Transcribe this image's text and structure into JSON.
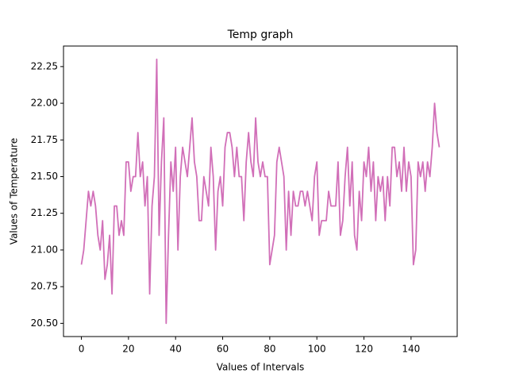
{
  "chart_data": {
    "type": "line",
    "title": "Temp graph",
    "xlabel": "Values of Intervals",
    "ylabel": "Values of Temperature",
    "x": [
      0,
      1,
      2,
      3,
      4,
      5,
      6,
      7,
      8,
      9,
      10,
      11,
      12,
      13,
      14,
      15,
      16,
      17,
      18,
      19,
      20,
      21,
      22,
      23,
      24,
      25,
      26,
      27,
      28,
      29,
      30,
      31,
      32,
      33,
      34,
      35,
      36,
      37,
      38,
      39,
      40,
      41,
      42,
      43,
      44,
      45,
      46,
      47,
      48,
      49,
      50,
      51,
      52,
      53,
      54,
      55,
      56,
      57,
      58,
      59,
      60,
      61,
      62,
      63,
      64,
      65,
      66,
      67,
      68,
      69,
      70,
      71,
      72,
      73,
      74,
      75,
      76,
      77,
      78,
      79,
      80,
      81,
      82,
      83,
      84,
      85,
      86,
      87,
      88,
      89,
      90,
      91,
      92,
      93,
      94,
      95,
      96,
      97,
      98,
      99,
      100,
      101,
      102,
      103,
      104,
      105,
      106,
      107,
      108,
      109,
      110,
      111,
      112,
      113,
      114,
      115,
      116,
      117,
      118,
      119,
      120,
      121,
      122,
      123,
      124,
      125,
      126,
      127,
      128,
      129,
      130,
      131,
      132,
      133,
      134,
      135,
      136,
      137,
      138,
      139,
      140,
      141,
      142,
      143,
      144,
      145,
      146,
      147,
      148,
      149,
      150,
      151,
      152
    ],
    "values": [
      20.9,
      21.0,
      21.2,
      21.4,
      21.3,
      21.4,
      21.3,
      21.1,
      21.0,
      21.2,
      20.8,
      20.9,
      21.1,
      20.7,
      21.3,
      21.3,
      21.1,
      21.2,
      21.1,
      21.6,
      21.6,
      21.4,
      21.5,
      21.5,
      21.8,
      21.5,
      21.6,
      21.3,
      21.5,
      20.7,
      21.3,
      21.5,
      22.3,
      21.1,
      21.6,
      21.9,
      20.5,
      21.1,
      21.6,
      21.4,
      21.7,
      21.0,
      21.5,
      21.7,
      21.6,
      21.5,
      21.7,
      21.9,
      21.6,
      21.5,
      21.2,
      21.2,
      21.5,
      21.4,
      21.3,
      21.7,
      21.5,
      21.0,
      21.4,
      21.5,
      21.3,
      21.7,
      21.8,
      21.8,
      21.7,
      21.5,
      21.7,
      21.5,
      21.5,
      21.2,
      21.6,
      21.8,
      21.6,
      21.5,
      21.9,
      21.6,
      21.5,
      21.6,
      21.5,
      21.5,
      20.9,
      21.0,
      21.1,
      21.6,
      21.7,
      21.6,
      21.5,
      21.0,
      21.4,
      21.1,
      21.4,
      21.3,
      21.3,
      21.4,
      21.4,
      21.3,
      21.4,
      21.3,
      21.2,
      21.5,
      21.6,
      21.1,
      21.2,
      21.2,
      21.2,
      21.4,
      21.3,
      21.3,
      21.3,
      21.6,
      21.1,
      21.2,
      21.5,
      21.7,
      21.3,
      21.6,
      21.1,
      21.0,
      21.4,
      21.2,
      21.6,
      21.5,
      21.7,
      21.4,
      21.6,
      21.2,
      21.5,
      21.4,
      21.5,
      21.2,
      21.5,
      21.3,
      21.7,
      21.7,
      21.5,
      21.6,
      21.4,
      21.7,
      21.4,
      21.6,
      21.5,
      20.9,
      21.0,
      21.6,
      21.5,
      21.6,
      21.4,
      21.6,
      21.5,
      21.7,
      22.0,
      21.8,
      21.7
    ],
    "color": "#d16fb8",
    "xlim": [
      -7.6,
      159.6
    ],
    "xticks": [
      0,
      20,
      40,
      60,
      80,
      100,
      120,
      140
    ],
    "ylim": [
      20.41,
      22.39
    ],
    "yticks": [
      {
        "value": 20.5,
        "label": "20.50"
      },
      20.75,
      {
        "value": 21,
        "label": "21.00"
      },
      21.25,
      {
        "value": 21.5,
        "label": "21.50"
      },
      21.75,
      {
        "value": 22,
        "label": "22.00"
      },
      22.25
    ]
  }
}
